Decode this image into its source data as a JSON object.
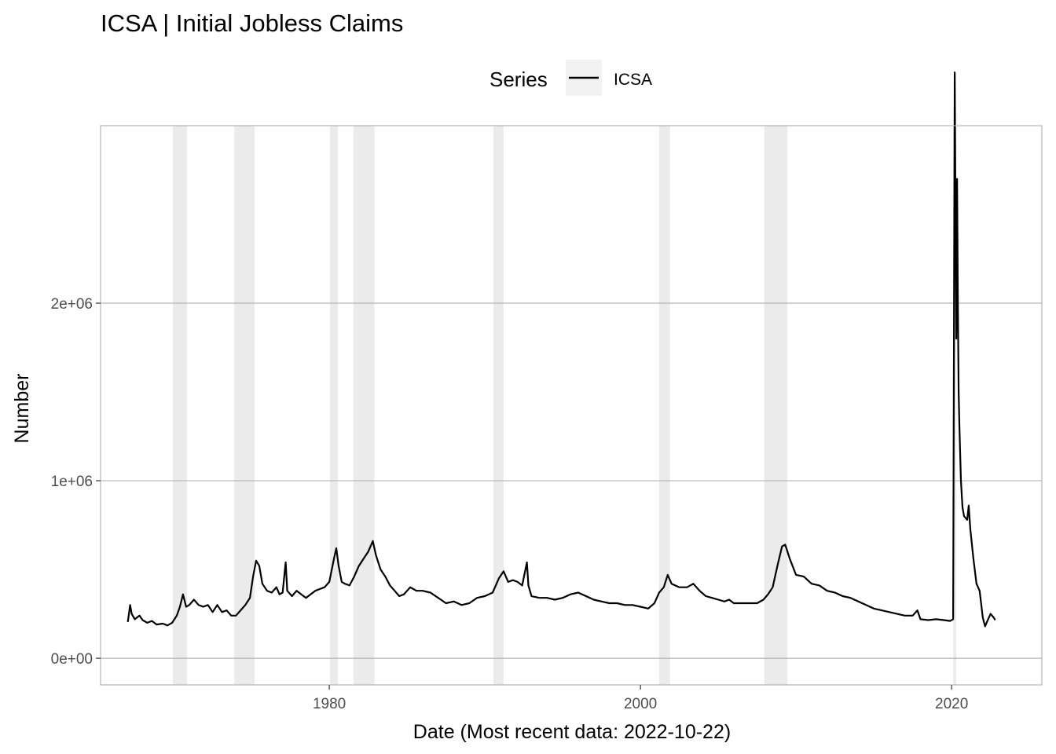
{
  "chart_data": {
    "type": "line",
    "title": "ICSA | Initial Jobless Claims",
    "xlabel": "Date (Most recent data: 2022-10-22)",
    "ylabel": "Number",
    "legend": {
      "title": "Series",
      "placement": "top"
    },
    "series": [
      {
        "name": "ICSA",
        "color": "#000000",
        "points": [
          [
            1967.05,
            205000
          ],
          [
            1967.2,
            300000
          ],
          [
            1967.3,
            250000
          ],
          [
            1967.5,
            220000
          ],
          [
            1967.8,
            240000
          ],
          [
            1968.0,
            215000
          ],
          [
            1968.3,
            200000
          ],
          [
            1968.6,
            210000
          ],
          [
            1968.9,
            190000
          ],
          [
            1969.3,
            195000
          ],
          [
            1969.6,
            185000
          ],
          [
            1969.9,
            200000
          ],
          [
            1970.2,
            240000
          ],
          [
            1970.4,
            290000
          ],
          [
            1970.6,
            360000
          ],
          [
            1970.8,
            290000
          ],
          [
            1971.0,
            300000
          ],
          [
            1971.3,
            330000
          ],
          [
            1971.6,
            300000
          ],
          [
            1971.9,
            290000
          ],
          [
            1972.2,
            300000
          ],
          [
            1972.5,
            260000
          ],
          [
            1972.8,
            300000
          ],
          [
            1973.1,
            260000
          ],
          [
            1973.4,
            270000
          ],
          [
            1973.7,
            240000
          ],
          [
            1974.0,
            240000
          ],
          [
            1974.3,
            270000
          ],
          [
            1974.6,
            300000
          ],
          [
            1974.9,
            340000
          ],
          [
            1975.1,
            460000
          ],
          [
            1975.3,
            550000
          ],
          [
            1975.5,
            520000
          ],
          [
            1975.7,
            420000
          ],
          [
            1976.0,
            380000
          ],
          [
            1976.3,
            370000
          ],
          [
            1976.6,
            400000
          ],
          [
            1976.8,
            360000
          ],
          [
            1977.0,
            370000
          ],
          [
            1977.2,
            540000
          ],
          [
            1977.3,
            380000
          ],
          [
            1977.6,
            350000
          ],
          [
            1977.9,
            380000
          ],
          [
            1978.2,
            360000
          ],
          [
            1978.5,
            340000
          ],
          [
            1978.8,
            360000
          ],
          [
            1979.1,
            380000
          ],
          [
            1979.4,
            390000
          ],
          [
            1979.7,
            400000
          ],
          [
            1980.0,
            430000
          ],
          [
            1980.3,
            560000
          ],
          [
            1980.45,
            620000
          ],
          [
            1980.6,
            520000
          ],
          [
            1980.8,
            430000
          ],
          [
            1981.0,
            420000
          ],
          [
            1981.3,
            410000
          ],
          [
            1981.6,
            460000
          ],
          [
            1981.9,
            520000
          ],
          [
            1982.2,
            560000
          ],
          [
            1982.5,
            600000
          ],
          [
            1982.8,
            660000
          ],
          [
            1983.0,
            580000
          ],
          [
            1983.3,
            500000
          ],
          [
            1983.6,
            460000
          ],
          [
            1983.9,
            410000
          ],
          [
            1984.2,
            380000
          ],
          [
            1984.5,
            350000
          ],
          [
            1984.8,
            360000
          ],
          [
            1985.2,
            400000
          ],
          [
            1985.6,
            380000
          ],
          [
            1986.0,
            380000
          ],
          [
            1986.5,
            370000
          ],
          [
            1987.0,
            340000
          ],
          [
            1987.5,
            310000
          ],
          [
            1988.0,
            320000
          ],
          [
            1988.5,
            300000
          ],
          [
            1989.0,
            310000
          ],
          [
            1989.5,
            340000
          ],
          [
            1990.0,
            350000
          ],
          [
            1990.5,
            370000
          ],
          [
            1990.9,
            450000
          ],
          [
            1991.2,
            490000
          ],
          [
            1991.5,
            430000
          ],
          [
            1991.8,
            440000
          ],
          [
            1992.1,
            430000
          ],
          [
            1992.4,
            410000
          ],
          [
            1992.7,
            540000
          ],
          [
            1992.8,
            410000
          ],
          [
            1993.0,
            350000
          ],
          [
            1993.5,
            340000
          ],
          [
            1994.0,
            340000
          ],
          [
            1994.5,
            330000
          ],
          [
            1995.0,
            340000
          ],
          [
            1995.5,
            360000
          ],
          [
            1996.0,
            370000
          ],
          [
            1996.5,
            350000
          ],
          [
            1997.0,
            330000
          ],
          [
            1997.5,
            320000
          ],
          [
            1998.0,
            310000
          ],
          [
            1998.5,
            310000
          ],
          [
            1999.0,
            300000
          ],
          [
            1999.5,
            300000
          ],
          [
            2000.0,
            290000
          ],
          [
            2000.5,
            280000
          ],
          [
            2000.9,
            310000
          ],
          [
            2001.2,
            370000
          ],
          [
            2001.5,
            400000
          ],
          [
            2001.75,
            470000
          ],
          [
            2002.0,
            420000
          ],
          [
            2002.5,
            400000
          ],
          [
            2003.0,
            400000
          ],
          [
            2003.4,
            420000
          ],
          [
            2003.8,
            380000
          ],
          [
            2004.2,
            350000
          ],
          [
            2004.6,
            340000
          ],
          [
            2005.0,
            330000
          ],
          [
            2005.4,
            320000
          ],
          [
            2005.7,
            330000
          ],
          [
            2006.0,
            310000
          ],
          [
            2006.5,
            310000
          ],
          [
            2007.0,
            310000
          ],
          [
            2007.5,
            310000
          ],
          [
            2007.9,
            330000
          ],
          [
            2008.2,
            360000
          ],
          [
            2008.5,
            400000
          ],
          [
            2008.8,
            520000
          ],
          [
            2009.1,
            630000
          ],
          [
            2009.3,
            640000
          ],
          [
            2009.6,
            560000
          ],
          [
            2010.0,
            470000
          ],
          [
            2010.5,
            460000
          ],
          [
            2011.0,
            420000
          ],
          [
            2011.5,
            410000
          ],
          [
            2012.0,
            380000
          ],
          [
            2012.5,
            370000
          ],
          [
            2013.0,
            350000
          ],
          [
            2013.5,
            340000
          ],
          [
            2014.0,
            320000
          ],
          [
            2014.5,
            300000
          ],
          [
            2015.0,
            280000
          ],
          [
            2015.5,
            270000
          ],
          [
            2016.0,
            260000
          ],
          [
            2016.5,
            250000
          ],
          [
            2017.0,
            240000
          ],
          [
            2017.5,
            240000
          ],
          [
            2017.8,
            270000
          ],
          [
            2018.0,
            220000
          ],
          [
            2018.5,
            215000
          ],
          [
            2019.0,
            220000
          ],
          [
            2019.5,
            215000
          ],
          [
            2019.9,
            210000
          ],
          [
            2020.1,
            220000
          ],
          [
            2020.2,
            3300000
          ],
          [
            2020.25,
            2500000
          ],
          [
            2020.3,
            1800000
          ],
          [
            2020.35,
            2700000
          ],
          [
            2020.4,
            2000000
          ],
          [
            2020.45,
            1500000
          ],
          [
            2020.5,
            1300000
          ],
          [
            2020.6,
            1000000
          ],
          [
            2020.7,
            850000
          ],
          [
            2020.8,
            800000
          ],
          [
            2021.0,
            780000
          ],
          [
            2021.1,
            860000
          ],
          [
            2021.2,
            730000
          ],
          [
            2021.4,
            560000
          ],
          [
            2021.6,
            420000
          ],
          [
            2021.8,
            380000
          ],
          [
            2022.0,
            230000
          ],
          [
            2022.15,
            180000
          ],
          [
            2022.3,
            210000
          ],
          [
            2022.5,
            250000
          ],
          [
            2022.7,
            230000
          ],
          [
            2022.8,
            215000
          ]
        ]
      }
    ],
    "recessions": [
      [
        1969.95,
        1970.85
      ],
      [
        1973.9,
        1975.2
      ],
      [
        1980.05,
        1980.55
      ],
      [
        1981.55,
        1982.9
      ],
      [
        1990.55,
        1991.2
      ],
      [
        2001.2,
        2001.9
      ],
      [
        2007.95,
        2009.45
      ],
      [
        2020.1,
        2020.3
      ]
    ],
    "xlim": [
      1965.3,
      2025.8
    ],
    "ylim": [
      -150000,
      3000000
    ],
    "x_ticks": [
      1980,
      2000,
      2020
    ],
    "x_tick_labels": [
      "1980",
      "2000",
      "2020"
    ],
    "y_ticks": [
      0,
      1000000,
      2000000
    ],
    "y_tick_labels": [
      "0e+00",
      "1e+06",
      "2e+06"
    ],
    "grid": true,
    "colors": {
      "line": "#000000",
      "grid": "#b3b3b3",
      "recession": "#ebebeb",
      "panel_border": "#b3b3b3"
    }
  }
}
